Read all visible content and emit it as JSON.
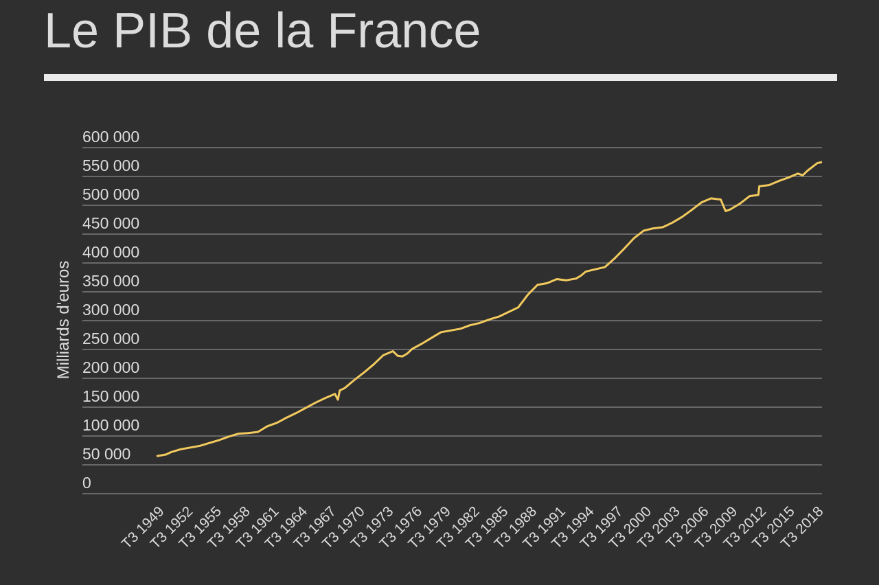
{
  "chart_data": {
    "type": "line",
    "title": "Le PIB de la France",
    "xlabel": "",
    "ylabel": "Milliards d'euros",
    "ylim": [
      0,
      600000
    ],
    "y_ticks": [
      "0",
      "50 000",
      "100 000",
      "150 000",
      "200 000",
      "250 000",
      "300 000",
      "350 000",
      "400 000",
      "450 000",
      "500 000",
      "550 000",
      "600 000"
    ],
    "x_ticks": [
      "T3 1949",
      "T3 1952",
      "T3 1955",
      "T3 1958",
      "T3 1961",
      "T3 1964",
      "T3 1967",
      "T3 1970",
      "T3 1973",
      "T3 1976",
      "T3 1979",
      "T3 1982",
      "T3 1985",
      "T3 1988",
      "T3 1991",
      "T3 1994",
      "T3 1997",
      "T3 2000",
      "T3 2003",
      "T3 2006",
      "T3 2009",
      "T3 2012",
      "T3 2015",
      "T3 2018"
    ],
    "x_range": [
      1949.5,
      2018.5
    ],
    "grid": true,
    "legend": "none",
    "line_color": "#f2ca5e",
    "series": [
      {
        "x": [
          1949.5,
          1950.5,
          1951.0,
          1952.0,
          1953.0,
          1954.0,
          1955.0,
          1956.0,
          1957.0,
          1958.0,
          1959.0,
          1960.0,
          1961.0,
          1962.0,
          1963.0,
          1964.0,
          1965.0,
          1966.0,
          1967.0,
          1968.0,
          1968.3,
          1968.5,
          1969.0,
          1970.0,
          1971.0,
          1972.0,
          1973.0,
          1974.0,
          1974.5,
          1975.0,
          1975.5,
          1976.0,
          1977.0,
          1978.0,
          1979.0,
          1980.0,
          1981.0,
          1982.0,
          1983.0,
          1984.0,
          1985.0,
          1986.0,
          1987.0,
          1988.0,
          1989.0,
          1990.0,
          1991.0,
          1992.0,
          1993.0,
          1993.5,
          1994.0,
          1995.0,
          1996.0,
          1997.0,
          1998.0,
          1999.0,
          2000.0,
          2001.0,
          2002.0,
          2003.0,
          2004.0,
          2005.0,
          2006.0,
          2007.0,
          2008.0,
          2008.5,
          2009.0,
          2010.0,
          2011.0,
          2011.9,
          2012.0,
          2013.0,
          2014.0,
          2015.0,
          2016.0,
          2016.5,
          2017.0,
          2018.0,
          2018.5
        ],
        "y": [
          65000,
          68000,
          72000,
          77000,
          80000,
          83000,
          88000,
          93000,
          99000,
          104000,
          105000,
          107000,
          117000,
          123000,
          132000,
          140000,
          149000,
          158000,
          166000,
          173000,
          163000,
          179000,
          183000,
          197000,
          210000,
          224000,
          240000,
          247000,
          239000,
          238000,
          243000,
          251000,
          260000,
          270000,
          280000,
          283000,
          286000,
          292000,
          296000,
          302000,
          307000,
          315000,
          323000,
          345000,
          362000,
          365000,
          372000,
          370000,
          373000,
          378000,
          385000,
          389000,
          393000,
          408000,
          425000,
          443000,
          456000,
          460000,
          462000,
          470000,
          480000,
          492000,
          505000,
          512000,
          510000,
          490000,
          493000,
          503000,
          516000,
          518000,
          533000,
          535000,
          542000,
          548000,
          555000,
          552000,
          560000,
          573000,
          575000
        ]
      }
    ]
  }
}
